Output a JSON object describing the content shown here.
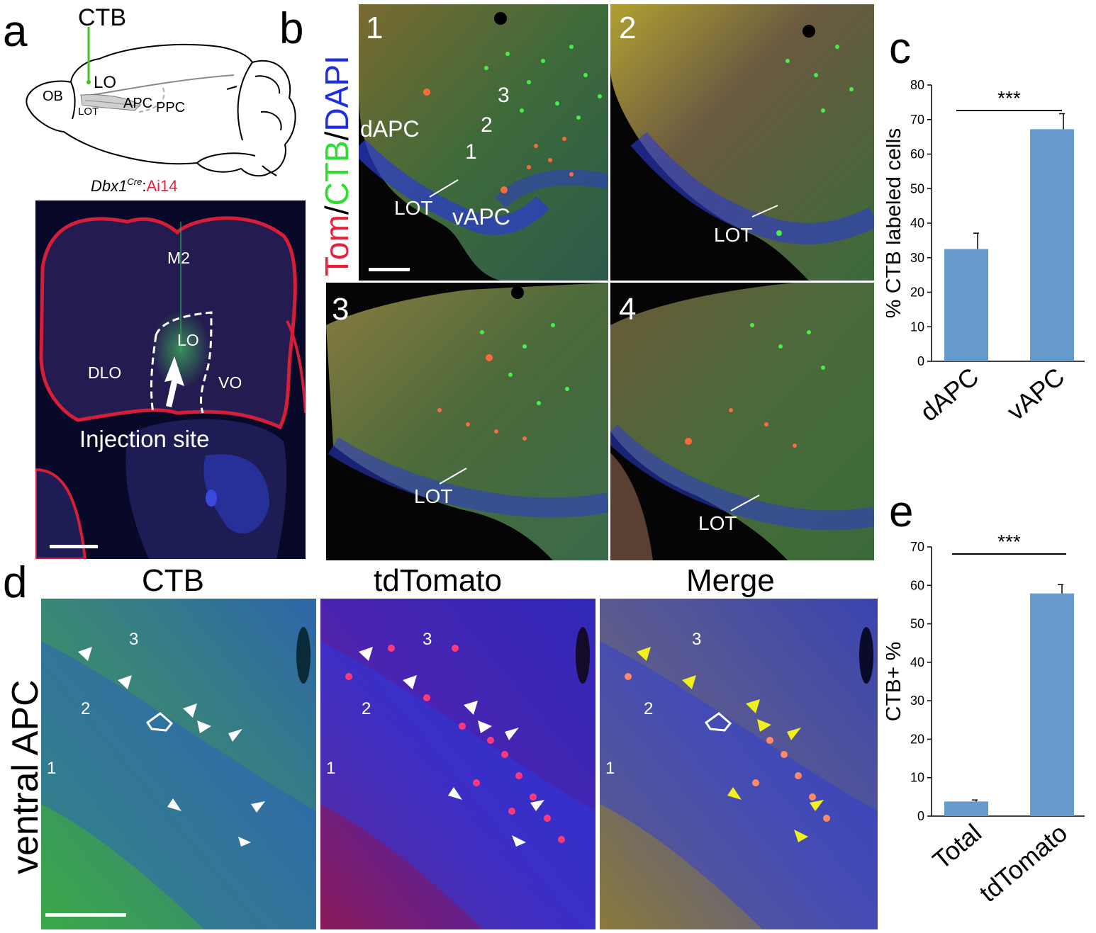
{
  "panels": {
    "a": "a",
    "b": "b",
    "c": "c",
    "d": "d",
    "e": "e"
  },
  "schematic": {
    "injection": "CTB",
    "lo": "LO",
    "ob": "OB",
    "lot": "LOT",
    "apc": "APC",
    "ppc": "PPC",
    "caption_main": "Dbx1",
    "caption_sup": "Cre",
    "caption_colon": ":",
    "caption_line": "Ai14"
  },
  "section_a": {
    "m2": "M2",
    "lo": "LO",
    "dlo": "DLO",
    "vo": "VO",
    "injection_site": "Injection site"
  },
  "panel_b": {
    "stain_tom": "Tom",
    "stain_slash1": "/",
    "stain_ctb": "CTB",
    "stain_slash2": "/",
    "stain_dapi": "DAPI",
    "tiles": [
      {
        "number": "1",
        "lot": "LOT",
        "dapc": "dAPC",
        "vapc": "vAPC",
        "layer1": "1",
        "layer2": "2",
        "layer3": "3"
      },
      {
        "number": "2",
        "lot": "LOT"
      },
      {
        "number": "3",
        "lot": "LOT"
      },
      {
        "number": "4",
        "lot": "LOT"
      }
    ]
  },
  "panel_d": {
    "row_label": "ventral APC",
    "columns": [
      "CTB",
      "tdTomato",
      "Merge"
    ],
    "layers": [
      "1",
      "2",
      "3"
    ]
  },
  "colors": {
    "ctb_green": "#2be02b",
    "tomato_red": "#e8203a",
    "dapi_blue": "#1d2ee0",
    "bar_blue": "#6699cc",
    "arrow_white": "#ffffff",
    "arrow_yellow": "#f2ef1a"
  },
  "chart_data": [
    {
      "type": "bar",
      "categories": [
        "dAPC",
        "vAPC"
      ],
      "values": [
        32.5,
        67.2
      ],
      "errors": [
        4.6,
        4.5
      ],
      "ylabel": "% CTB labeled cells",
      "ylim": [
        0,
        80
      ],
      "yticks": [
        "0",
        "10",
        "20",
        "30",
        "40",
        "50",
        "60",
        "70",
        "80"
      ],
      "significance": "***",
      "grid": false
    },
    {
      "type": "bar",
      "categories": [
        "Total",
        "tdTomato"
      ],
      "values": [
        3.8,
        57.9
      ],
      "errors": [
        0.4,
        2.3
      ],
      "ylabel": "CTB+ %",
      "ylim": [
        0,
        70
      ],
      "yticks": [
        "0",
        "10",
        "20",
        "30",
        "40",
        "50",
        "60",
        "70"
      ],
      "significance": "***",
      "grid": false
    }
  ]
}
